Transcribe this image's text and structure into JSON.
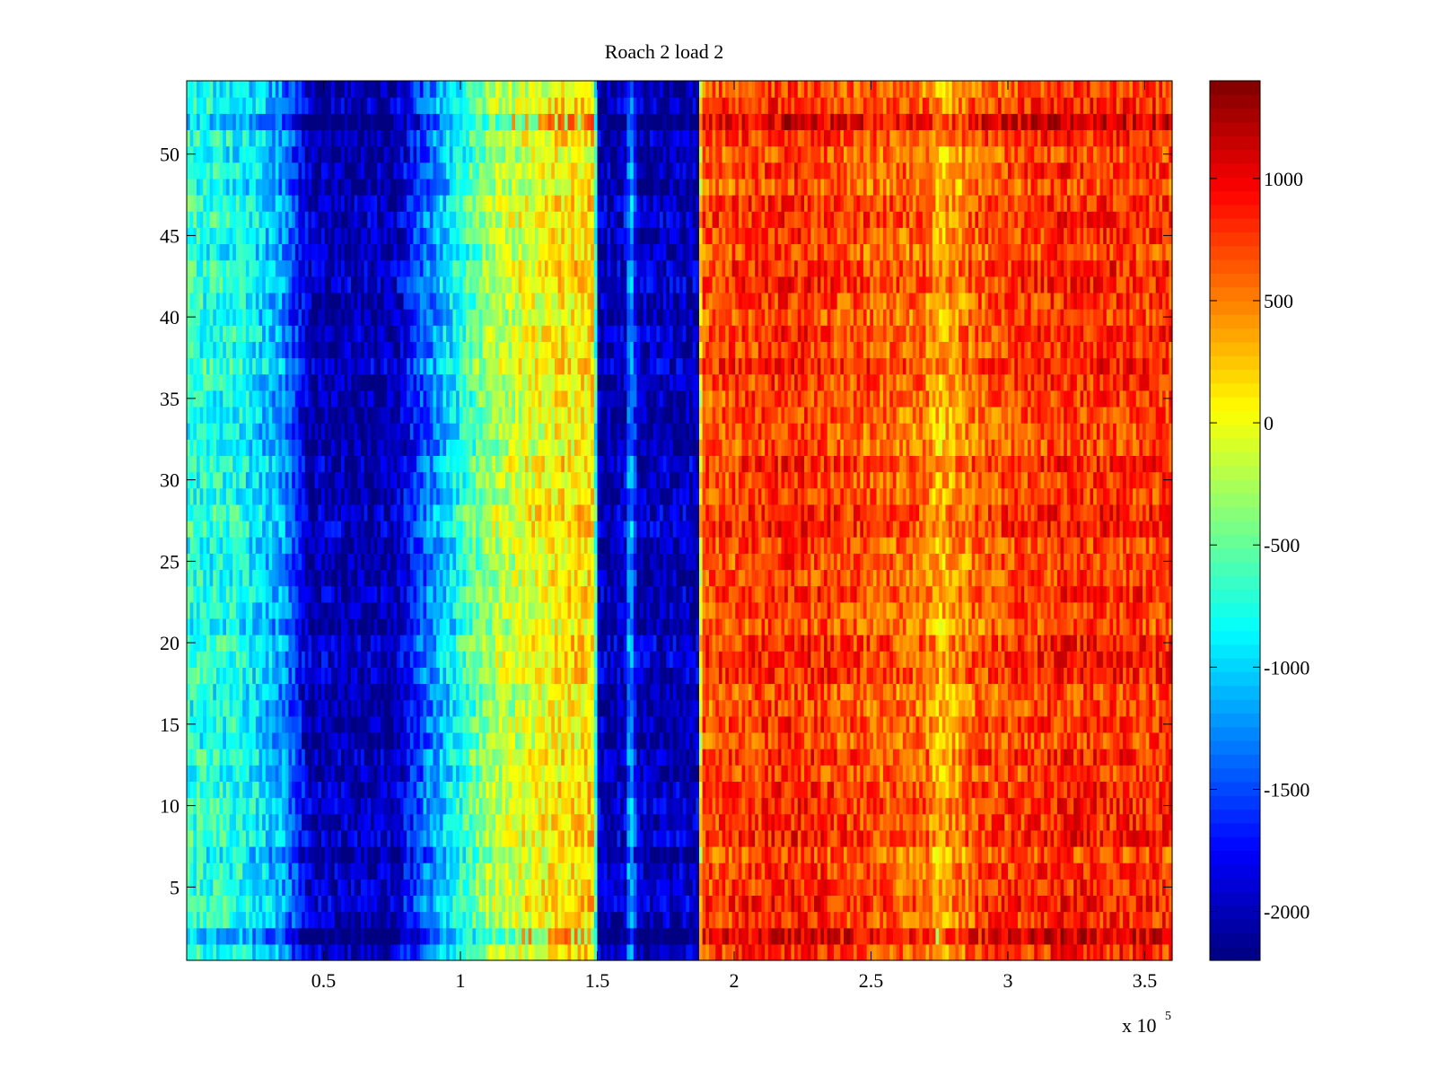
{
  "chart_data": {
    "type": "heatmap",
    "title": "Roach 2 load 2",
    "xlabel": "",
    "ylabel": "",
    "xlim": [
      0,
      360000
    ],
    "ylim": [
      0.5,
      54.5
    ],
    "x_scale_label": "x 10",
    "x_scale_exponent": "5",
    "x_ticks": [
      {
        "value": 50000,
        "label": "0.5"
      },
      {
        "value": 100000,
        "label": "1"
      },
      {
        "value": 150000,
        "label": "1.5"
      },
      {
        "value": 200000,
        "label": "2"
      },
      {
        "value": 250000,
        "label": "2.5"
      },
      {
        "value": 300000,
        "label": "3"
      },
      {
        "value": 350000,
        "label": "3.5"
      }
    ],
    "y_ticks": [
      {
        "value": 5,
        "label": "5"
      },
      {
        "value": 10,
        "label": "10"
      },
      {
        "value": 15,
        "label": "15"
      },
      {
        "value": 20,
        "label": "20"
      },
      {
        "value": 25,
        "label": "25"
      },
      {
        "value": 30,
        "label": "30"
      },
      {
        "value": 35,
        "label": "35"
      },
      {
        "value": 40,
        "label": "40"
      },
      {
        "value": 45,
        "label": "45"
      },
      {
        "value": 50,
        "label": "50"
      }
    ],
    "rows": 54,
    "colormap": "jet",
    "clim": [
      -2200,
      1400
    ],
    "colorbar_ticks": [
      {
        "value": 1000,
        "label": "1000"
      },
      {
        "value": 500,
        "label": "500"
      },
      {
        "value": 0,
        "label": "0"
      },
      {
        "value": -500,
        "label": "-500"
      },
      {
        "value": -1000,
        "label": "-1000"
      },
      {
        "value": -1500,
        "label": "-1500"
      },
      {
        "value": -2000,
        "label": "-2000"
      }
    ],
    "column_profile": [
      {
        "x": 0,
        "value": -700
      },
      {
        "x": 20000,
        "value": -800
      },
      {
        "x": 35000,
        "value": -1200
      },
      {
        "x": 45000,
        "value": -2000
      },
      {
        "x": 75000,
        "value": -2050
      },
      {
        "x": 85000,
        "value": -1500
      },
      {
        "x": 95000,
        "value": -1000
      },
      {
        "x": 110000,
        "value": -300
      },
      {
        "x": 135000,
        "value": 100
      },
      {
        "x": 149000,
        "value": 150
      },
      {
        "x": 150000,
        "value": -2000
      },
      {
        "x": 160000,
        "value": -2000
      },
      {
        "x": 162000,
        "value": -1000
      },
      {
        "x": 165000,
        "value": -2000
      },
      {
        "x": 187000,
        "value": -2000
      },
      {
        "x": 188000,
        "value": 650
      },
      {
        "x": 220000,
        "value": 800
      },
      {
        "x": 270000,
        "value": 550
      },
      {
        "x": 275000,
        "value": 300
      },
      {
        "x": 290000,
        "value": 650
      },
      {
        "x": 320000,
        "value": 800
      },
      {
        "x": 360000,
        "value": 750
      }
    ],
    "highlighted_rows": [
      {
        "row": 52,
        "description": "strong banding row"
      },
      {
        "row": 2,
        "description": "strong banding row"
      }
    ]
  }
}
